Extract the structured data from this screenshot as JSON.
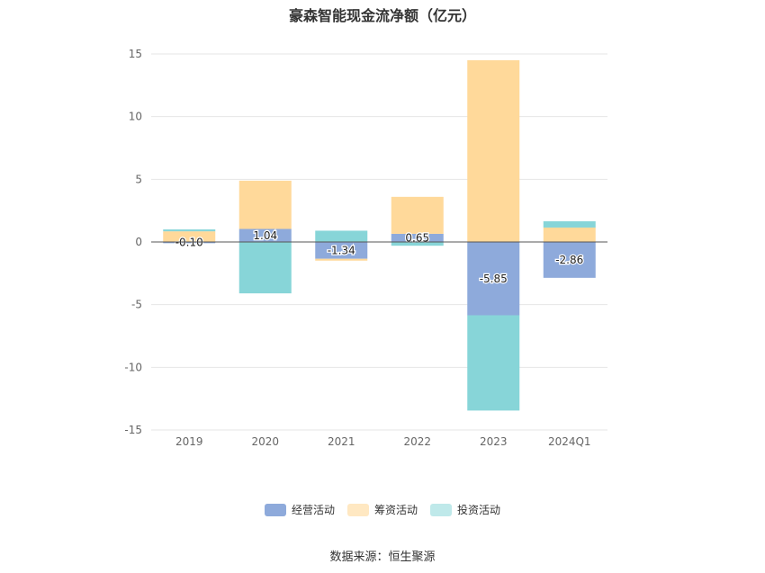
{
  "chart_data": {
    "type": "bar",
    "stacked": true,
    "title": "豪森智能现金流净额（亿元）",
    "categories": [
      "2019",
      "2020",
      "2021",
      "2022",
      "2023",
      "2024Q1"
    ],
    "ylim": [
      -15,
      15
    ],
    "yticks": [
      15,
      10,
      5,
      0,
      -5,
      -10,
      -15
    ],
    "grid": true,
    "legend_position": "bottom",
    "series": [
      {
        "name": "经营活动",
        "color": "#8eaadb",
        "values": [
          -0.1,
          1.04,
          -1.34,
          0.65,
          -5.85,
          -2.86
        ]
      },
      {
        "name": "筹资活动",
        "color": "#ffd99a",
        "values": [
          0.85,
          3.85,
          -0.15,
          2.95,
          14.5,
          1.15
        ]
      },
      {
        "name": "投资活动",
        "color": "#87d5d8",
        "values": [
          0.15,
          -4.1,
          0.9,
          -0.3,
          -7.6,
          0.5
        ]
      }
    ],
    "data_labels": [
      "-0.10",
      "1.04",
      "-1.34",
      "0.65",
      "-5.85",
      "-2.86"
    ]
  },
  "legend": {
    "operating": "经营活动",
    "financing": "筹资活动",
    "investing": "投资活动"
  },
  "source": "数据来源：恒生聚源"
}
